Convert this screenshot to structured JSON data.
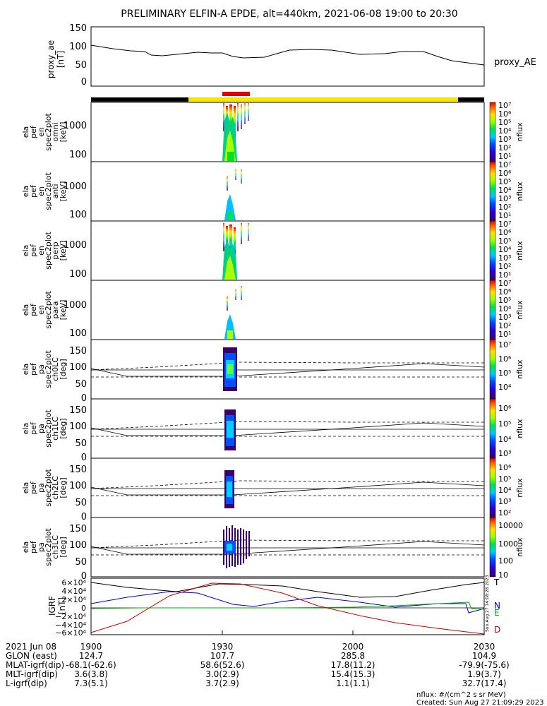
{
  "title": "PRELIMINARY ELFIN-A EPDE, alt=440km, 2021-06-08 19:00 to 20:30",
  "panels": {
    "ae": {
      "ylabel": [
        "proxy_ae",
        "[nT]"
      ],
      "yticks": [
        "150",
        "100",
        "50",
        "0"
      ],
      "legend": "proxy_AE"
    },
    "en_omni": {
      "ylabel": [
        "ela",
        "pef",
        "en",
        "spec2plot",
        "omni",
        "[keV]"
      ],
      "yticks": [
        "1000",
        "100"
      ],
      "cbar_label": "nflux"
    },
    "en_anti": {
      "ylabel": [
        "ela",
        "pef",
        "en",
        "spec2plot",
        "anti",
        "[keV]"
      ],
      "yticks": [
        "1000",
        "100"
      ],
      "cbar_label": "nflux"
    },
    "en_perp": {
      "ylabel": [
        "ela",
        "pef",
        "en",
        "spec2plot",
        "perp",
        "[keV]"
      ],
      "yticks": [
        "1000",
        "100"
      ],
      "cbar_label": "nflux"
    },
    "en_para": {
      "ylabel": [
        "ela",
        "pef",
        "en",
        "spec2plot",
        "para",
        "[keV]"
      ],
      "yticks": [
        "1000",
        "100"
      ],
      "cbar_label": "nflux"
    },
    "pa_ch0": {
      "ylabel": [
        "ela",
        "pef",
        "pa",
        "spec2plot",
        "ch0LC",
        "[deg]"
      ],
      "yticks": [
        "150",
        "100",
        "50",
        "0"
      ],
      "cbar_label": "nflux"
    },
    "pa_ch1": {
      "ylabel": [
        "ela",
        "pef",
        "pa",
        "spec2plot",
        "ch1LC",
        "[deg]"
      ],
      "yticks": [
        "150",
        "100",
        "50",
        "0"
      ],
      "cbar_label": "nflux"
    },
    "pa_ch2": {
      "ylabel": [
        "ela",
        "pef",
        "pa",
        "spec2plot",
        "ch2LC",
        "[deg]"
      ],
      "yticks": [
        "150",
        "100",
        "50",
        "0"
      ],
      "cbar_label": "nflux"
    },
    "pa_ch3": {
      "ylabel": [
        "ela",
        "pef",
        "pa",
        "spec2plot",
        "ch3LC",
        "[deg]"
      ],
      "yticks": [
        "150",
        "100",
        "50",
        "0"
      ],
      "cbar_label": "nflux"
    },
    "field": {
      "ylabel": [
        "IGRF",
        "[nT]"
      ],
      "yticks": [
        "6×10⁴",
        "4×10⁴",
        "2×10⁴",
        "0",
        "−2×10⁴",
        "−4×10⁴",
        "−6×10⁴"
      ],
      "legend": [
        "T",
        "N",
        "E",
        "D"
      ]
    }
  },
  "colorbars": {
    "c1": [
      "10⁷",
      "10⁶",
      "10⁵",
      "10⁴",
      "10³",
      "10²",
      "10¹"
    ],
    "c2": [
      "10⁷",
      "10⁶",
      "10⁵",
      "10⁴",
      "10³",
      "10²",
      "10¹"
    ],
    "c3": [
      "10⁷",
      "10⁶",
      "10⁵",
      "10⁴",
      "10³",
      "10²",
      "10¹"
    ],
    "c4": [
      "10⁷",
      "10⁶",
      "10⁵",
      "10⁴",
      "10³",
      "10²",
      "10¹"
    ],
    "c5": [
      "10⁷",
      "10⁶",
      "10⁵",
      "10⁴"
    ],
    "c6": [
      "10⁶",
      "10⁵",
      "10⁴",
      "10³"
    ],
    "c7": [
      "10⁶",
      "10⁵",
      "10⁴",
      "10³",
      "10²"
    ],
    "c8": [
      "10000",
      "1000",
      "100",
      "10"
    ]
  },
  "xaxis": {
    "rows": [
      {
        "label": "2021 Jun 08",
        "values": [
          "1900",
          "1930",
          "2000",
          "2030"
        ]
      },
      {
        "label": "GLON (east)",
        "values": [
          "124.7",
          "107.7",
          "285.8",
          "104.9"
        ]
      },
      {
        "label": "MLAT-igrf(dip)",
        "values": [
          "-68.1(-62.6)",
          "58.6(52.6)",
          "17.8(11.2)",
          "-79.9(-75.6)"
        ]
      },
      {
        "label": "MLT-igrf(dip)",
        "values": [
          "3.6(3.8)",
          "3.0(2.9)",
          "15.4(15.3)",
          "1.9(3.7)"
        ]
      },
      {
        "label": "L-igrf(dip)",
        "values": [
          "7.3(5.1)",
          "3.7(2.9)",
          "1.1(1.1)",
          "32.7(17.4)"
        ]
      }
    ]
  },
  "footer": {
    "units": "nflux: #/(cm^2 s sr MeV)",
    "created": "Created: Sun Aug 27 21:09:29 2023",
    "side_stamp": "Sun Aug 27 14:08:28 2023"
  },
  "chart_data": [
    {
      "type": "line",
      "title": "",
      "xlabel": "",
      "ylabel": "proxy_ae [nT]",
      "x": [
        "19:00",
        "19:10",
        "19:20",
        "19:30",
        "19:40",
        "19:50",
        "20:00",
        "20:10",
        "20:20",
        "20:30"
      ],
      "series": [
        {
          "name": "proxy_AE",
          "values": [
            97,
            84,
            72,
            80,
            65,
            86,
            73,
            78,
            62,
            48
          ]
        }
      ],
      "ylim": [
        0,
        150
      ]
    },
    {
      "type": "heatmap",
      "title": "",
      "ylabel": "ela pef en spec2plot omni [keV]",
      "ylog": true,
      "ylim": [
        50,
        5000
      ],
      "x_range": [
        "19:30",
        "19:34"
      ],
      "colorbar": "nflux",
      "zlim": [
        10,
        10000000
      ]
    },
    {
      "type": "line",
      "title": "",
      "ylabel": "IGRF [nT]",
      "ylim": [
        -60000,
        60000
      ],
      "x": [
        "19:00",
        "19:10",
        "19:20",
        "19:30",
        "19:40",
        "19:50",
        "20:00",
        "20:10",
        "20:20",
        "20:30"
      ],
      "series": [
        {
          "name": "T",
          "values": [
            54000,
            42000,
            32000,
            48000,
            50000,
            46000,
            35000,
            28000,
            40000,
            52000
          ]
        },
        {
          "name": "N",
          "values": [
            8000,
            20000,
            27000,
            14000,
            2000,
            14000,
            22000,
            14000,
            8000,
            -1000
          ]
        },
        {
          "name": "E",
          "values": [
            -2000,
            0,
            0,
            0,
            1000,
            1000,
            3000,
            5000,
            7000,
            0
          ]
        },
        {
          "name": "D",
          "values": [
            -52000,
            -30000,
            20000,
            50000,
            38000,
            8000,
            -18000,
            -38000,
            -46000,
            -58000
          ]
        }
      ]
    }
  ]
}
